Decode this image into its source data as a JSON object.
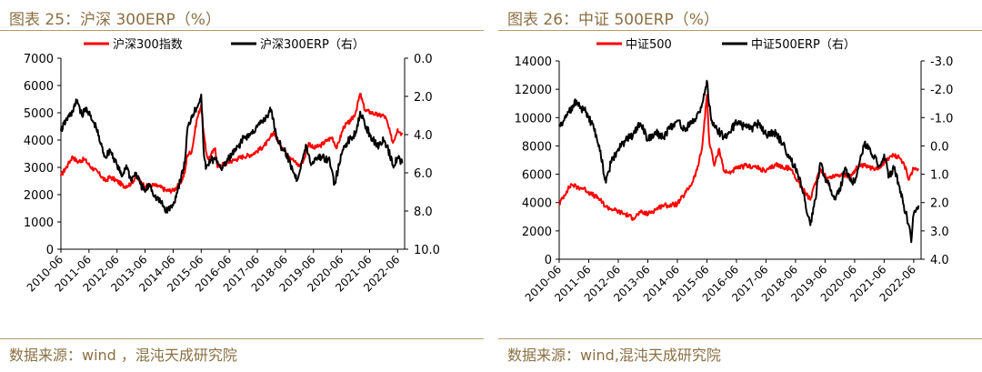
{
  "charts": [
    {
      "title": "图表 25：沪深 300ERP（%）",
      "source": "数据来源：wind ，混沌天成研究院",
      "chart_data": {
        "type": "line",
        "x_tick_labels": [
          "2010-06",
          "2011-06",
          "2012-06",
          "2013-06",
          "2014-06",
          "2015-06",
          "2016-06",
          "2017-06",
          "2018-06",
          "2019-06",
          "2020-06",
          "2021-06",
          "2022-06"
        ],
        "x_range": [
          "2010-06",
          "2022-09"
        ],
        "left_axis": {
          "range": [
            0,
            7000
          ],
          "ticks": [
            "0",
            "1000",
            "2000",
            "3000",
            "4000",
            "5000",
            "6000",
            "7000"
          ]
        },
        "right_axis": {
          "range": [
            0,
            10
          ],
          "inverted": true,
          "ticks": [
            "0.0",
            "2.0",
            "4.0",
            "6.0",
            "8.0",
            "10.0"
          ]
        },
        "legend_position": "top",
        "series": [
          {
            "name": "沪深300指数",
            "axis": "left",
            "color": "#ff0000",
            "x": [
              "2010-06",
              "2010-09",
              "2010-11",
              "2011-01",
              "2011-04",
              "2011-07",
              "2011-10",
              "2012-01",
              "2012-03",
              "2012-06",
              "2012-09",
              "2012-12",
              "2013-02",
              "2013-04",
              "2013-06",
              "2013-09",
              "2013-12",
              "2014-03",
              "2014-06",
              "2014-09",
              "2014-11",
              "2014-12",
              "2015-02",
              "2015-04",
              "2015-06",
              "2015-07",
              "2015-08",
              "2015-09",
              "2015-12",
              "2016-01",
              "2016-03",
              "2016-06",
              "2016-09",
              "2016-12",
              "2017-03",
              "2017-06",
              "2017-09",
              "2017-11",
              "2018-01",
              "2018-03",
              "2018-06",
              "2018-09",
              "2018-10",
              "2018-12",
              "2019-02",
              "2019-04",
              "2019-06",
              "2019-09",
              "2019-12",
              "2020-02",
              "2020-04",
              "2020-07",
              "2020-10",
              "2020-12",
              "2021-02",
              "2021-04",
              "2021-07",
              "2021-10",
              "2021-12",
              "2022-01",
              "2022-03",
              "2022-04",
              "2022-06",
              "2022-08"
            ],
            "values": [
              2700,
              3100,
              3400,
              3200,
              3300,
              3000,
              2800,
              2500,
              2650,
              2500,
              2300,
              2400,
              2650,
              2500,
              2300,
              2350,
              2300,
              2150,
              2150,
              2400,
              2800,
              3450,
              3600,
              4700,
              5300,
              4300,
              3600,
              3300,
              3700,
              3000,
              3100,
              3200,
              3300,
              3400,
              3450,
              3600,
              3800,
              4000,
              4300,
              3950,
              3600,
              3300,
              3200,
              3050,
              3300,
              3900,
              3700,
              3800,
              4000,
              4100,
              3700,
              4500,
              4700,
              5000,
              5700,
              5100,
              5000,
              4900,
              4900,
              4800,
              4200,
              3900,
              4400,
              4200
            ]
          },
          {
            "name": "沪深300ERP（右）",
            "axis": "right",
            "color": "#000000",
            "x": [
              "2010-06",
              "2010-08",
              "2010-11",
              "2011-01",
              "2011-03",
              "2011-05",
              "2011-07",
              "2011-09",
              "2011-11",
              "2012-01",
              "2012-03",
              "2012-06",
              "2012-08",
              "2012-10",
              "2012-12",
              "2013-02",
              "2013-04",
              "2013-06",
              "2013-08",
              "2013-10",
              "2014-01",
              "2014-03",
              "2014-06",
              "2014-09",
              "2014-11",
              "2014-12",
              "2015-02",
              "2015-04",
              "2015-06",
              "2015-07",
              "2015-08",
              "2015-10",
              "2016-01",
              "2016-03",
              "2016-06",
              "2016-09",
              "2016-12",
              "2017-03",
              "2017-06",
              "2017-09",
              "2017-12",
              "2018-02",
              "2018-04",
              "2018-06",
              "2018-09",
              "2018-11",
              "2019-01",
              "2019-03",
              "2019-05",
              "2019-07",
              "2019-10",
              "2020-01",
              "2020-03",
              "2020-05",
              "2020-07",
              "2020-10",
              "2020-12",
              "2021-02",
              "2021-04",
              "2021-07",
              "2021-10",
              "2021-12",
              "2022-02",
              "2022-04",
              "2022-06",
              "2022-08"
            ],
            "values": [
              3.8,
              3.3,
              2.8,
              2.2,
              3.0,
              2.6,
              3.2,
              3.6,
              4.5,
              5.2,
              4.8,
              5.6,
              6.2,
              5.6,
              6.4,
              6.0,
              6.6,
              7.0,
              6.6,
              7.2,
              7.6,
              8.0,
              7.7,
              6.4,
              5.5,
              3.8,
              3.0,
              2.6,
              1.9,
              4.8,
              5.8,
              5.3,
              5.4,
              5.8,
              5.2,
              4.8,
              4.2,
              4.0,
              3.6,
              3.2,
              2.7,
              4.0,
              4.6,
              4.9,
              5.8,
              6.4,
              5.4,
              4.6,
              5.6,
              5.2,
              5.2,
              5.4,
              6.6,
              5.6,
              4.6,
              4.2,
              3.9,
              2.8,
              3.5,
              4.2,
              4.6,
              4.3,
              4.8,
              5.6,
              5.2,
              5.5
            ]
          }
        ]
      }
    },
    {
      "title": "图表 26：中证 500ERP（%）",
      "source": "数据来源：wind,混沌天成研究院",
      "chart_data": {
        "type": "line",
        "x_tick_labels": [
          "2010-06",
          "2011-06",
          "2012-06",
          "2013-06",
          "2014-06",
          "2015-06",
          "2016-06",
          "2017-06",
          "2018-06",
          "2019-06",
          "2020-06",
          "2021-06",
          "2022-06"
        ],
        "x_range": [
          "2010-06",
          "2022-09"
        ],
        "left_axis": {
          "range": [
            0,
            14000
          ],
          "ticks": [
            "0",
            "2000",
            "4000",
            "6000",
            "8000",
            "10000",
            "12000",
            "14000"
          ]
        },
        "right_axis": {
          "range": [
            -3,
            4
          ],
          "inverted": true,
          "ticks": [
            "-3.0",
            "-2.0",
            "-1.0",
            "0.0",
            "1.0",
            "2.0",
            "3.0",
            "4.0"
          ]
        },
        "legend_position": "top",
        "series": [
          {
            "name": "中证500",
            "axis": "left",
            "color": "#ff0000",
            "x": [
              "2010-06",
              "2010-09",
              "2010-11",
              "2011-01",
              "2011-04",
              "2011-07",
              "2011-10",
              "2012-01",
              "2012-04",
              "2012-07",
              "2012-10",
              "2012-12",
              "2013-03",
              "2013-06",
              "2013-09",
              "2013-12",
              "2014-03",
              "2014-06",
              "2014-09",
              "2014-12",
              "2015-02",
              "2015-04",
              "2015-06",
              "2015-07",
              "2015-08",
              "2015-09",
              "2015-11",
              "2016-01",
              "2016-03",
              "2016-06",
              "2016-10",
              "2017-02",
              "2017-06",
              "2017-10",
              "2018-01",
              "2018-04",
              "2018-07",
              "2018-10",
              "2018-12",
              "2019-02",
              "2019-04",
              "2019-07",
              "2019-10",
              "2020-01",
              "2020-04",
              "2020-07",
              "2020-10",
              "2021-01",
              "2021-04",
              "2021-07",
              "2021-09",
              "2021-12",
              "2022-02",
              "2022-04",
              "2022-06",
              "2022-08"
            ],
            "values": [
              3900,
              4800,
              5300,
              5100,
              5000,
              4600,
              4300,
              3700,
              3500,
              3300,
              3100,
              2900,
              3300,
              3200,
              3500,
              3800,
              3800,
              3900,
              4600,
              5400,
              6300,
              7800,
              11600,
              8200,
              7500,
              6600,
              7800,
              6200,
              6100,
              6400,
              6600,
              6500,
              6200,
              6700,
              6500,
              6400,
              5500,
              4700,
              4200,
              5300,
              6400,
              5700,
              5900,
              6000,
              5800,
              6500,
              6600,
              6400,
              6500,
              7000,
              7300,
              7200,
              6800,
              5600,
              6400,
              6400
            ]
          },
          {
            "name": "中证500ERP（右）",
            "axis": "right",
            "color": "#000000",
            "x": [
              "2010-06",
              "2010-08",
              "2010-10",
              "2011-01",
              "2011-03",
              "2011-05",
              "2011-07",
              "2011-09",
              "2011-11",
              "2012-01",
              "2012-03",
              "2012-06",
              "2012-09",
              "2012-12",
              "2013-03",
              "2013-06",
              "2013-09",
              "2013-12",
              "2014-03",
              "2014-06",
              "2014-09",
              "2014-12",
              "2015-03",
              "2015-05",
              "2015-06",
              "2015-07",
              "2015-08",
              "2015-10",
              "2016-01",
              "2016-03",
              "2016-06",
              "2016-09",
              "2016-12",
              "2017-03",
              "2017-06",
              "2017-09",
              "2017-12",
              "2018-03",
              "2018-06",
              "2018-08",
              "2018-10",
              "2018-12",
              "2019-02",
              "2019-04",
              "2019-06",
              "2019-08",
              "2019-10",
              "2019-12",
              "2020-02",
              "2020-04",
              "2020-06",
              "2020-08",
              "2020-10",
              "2020-12",
              "2021-02",
              "2021-04",
              "2021-06",
              "2021-08",
              "2021-10",
              "2021-12",
              "2022-02",
              "2022-04",
              "2022-05",
              "2022-06",
              "2022-08"
            ],
            "values": [
              -0.7,
              -0.9,
              -1.2,
              -1.6,
              -1.3,
              -1.2,
              -0.8,
              -0.4,
              0.4,
              1.3,
              0.6,
              0.1,
              -0.2,
              -0.4,
              -0.8,
              -0.2,
              -0.5,
              -0.3,
              -0.6,
              -0.9,
              -0.6,
              -0.8,
              -1.2,
              -1.8,
              -2.3,
              -1.4,
              -0.9,
              -0.6,
              -0.3,
              -0.5,
              -0.8,
              -0.7,
              -0.6,
              -0.8,
              -0.4,
              -0.5,
              -0.2,
              0.3,
              0.8,
              1.2,
              2.0,
              2.8,
              1.9,
              0.6,
              1.1,
              1.5,
              1.8,
              1.6,
              0.8,
              1.2,
              1.3,
              0.6,
              -0.1,
              0.1,
              0.4,
              0.7,
              0.3,
              1.1,
              0.8,
              1.4,
              2.1,
              2.8,
              3.4,
              2.4,
              2.1
            ]
          }
        ]
      }
    }
  ]
}
